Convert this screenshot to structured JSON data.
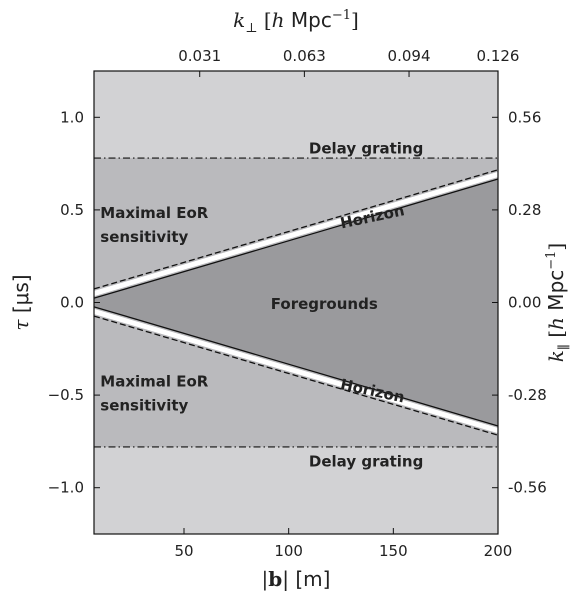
{
  "chart_data": {
    "type": "area",
    "x": {
      "label_prefix": "|",
      "label_symbol": "b",
      "label_suffix": "| [m]",
      "range": [
        7,
        200
      ],
      "ticks": [
        50,
        100,
        150,
        200
      ],
      "tick_labels": [
        "50",
        "100",
        "150",
        "200"
      ]
    },
    "y": {
      "label_symbol": "τ",
      "label_suffix": " [μs]",
      "range": [
        -1.25,
        1.25
      ],
      "ticks": [
        -1.0,
        -0.5,
        0.0,
        0.5,
        1.0
      ],
      "tick_labels": [
        "−1.0",
        "−0.5",
        "0.0",
        "0.5",
        "1.0"
      ]
    },
    "x_top": {
      "label_symbol": "k",
      "label_sub": "⊥",
      "label_h": "h",
      "label_unit": "Mpc",
      "label_exp": "−1",
      "ticks_at_x": [
        57.5,
        107.5,
        157.5,
        200
      ],
      "tick_labels": [
        "0.031",
        "0.063",
        "0.094",
        "0.126"
      ]
    },
    "y_right": {
      "label_symbol": "k",
      "label_sub": "∥",
      "label_h": "h",
      "label_unit": "Mpc",
      "label_exp": "−1",
      "ticks_at_y": [
        1.0,
        0.5,
        0.0,
        -0.5,
        -1.0
      ],
      "tick_labels": [
        "0.56",
        "0.28",
        "0.00",
        "-0.28",
        "-0.56"
      ]
    },
    "horizon": {
      "intercept": 0.0,
      "slope_per_m": 0.003333,
      "buffer_offset": 0.05
    },
    "delay_grating": {
      "tau": 0.78
    },
    "colors": {
      "outer": "#d2d2d4",
      "inner": "#bababd",
      "foreground": "#9a9a9d",
      "line": "#111111"
    },
    "annotations": [
      {
        "name": "delay-grating-top",
        "text": "Delay grating",
        "x": 137,
        "y": 0.83
      },
      {
        "name": "delay-grating-bottom",
        "text": "Delay grating",
        "x": 137,
        "y": -0.86
      },
      {
        "name": "eor-top-line1",
        "text": "Maximal EoR",
        "x": 10,
        "y": 0.48
      },
      {
        "name": "eor-top-line2",
        "text": "sensitivity",
        "x": 10,
        "y": 0.35
      },
      {
        "name": "eor-bottom-line1",
        "text": "Maximal EoR",
        "x": 10,
        "y": -0.43
      },
      {
        "name": "eor-bottom-line2",
        "text": "sensitivity",
        "x": 10,
        "y": -0.56
      },
      {
        "name": "foregrounds",
        "text": "Foregrounds",
        "x": 117,
        "y": -0.01
      },
      {
        "name": "horizon-top",
        "text": "Horizon",
        "x": 140,
        "y": 0.46,
        "rotate": -12
      },
      {
        "name": "horizon-bottom",
        "text": "Horizon",
        "x": 140,
        "y": -0.48,
        "rotate": 12
      }
    ]
  }
}
